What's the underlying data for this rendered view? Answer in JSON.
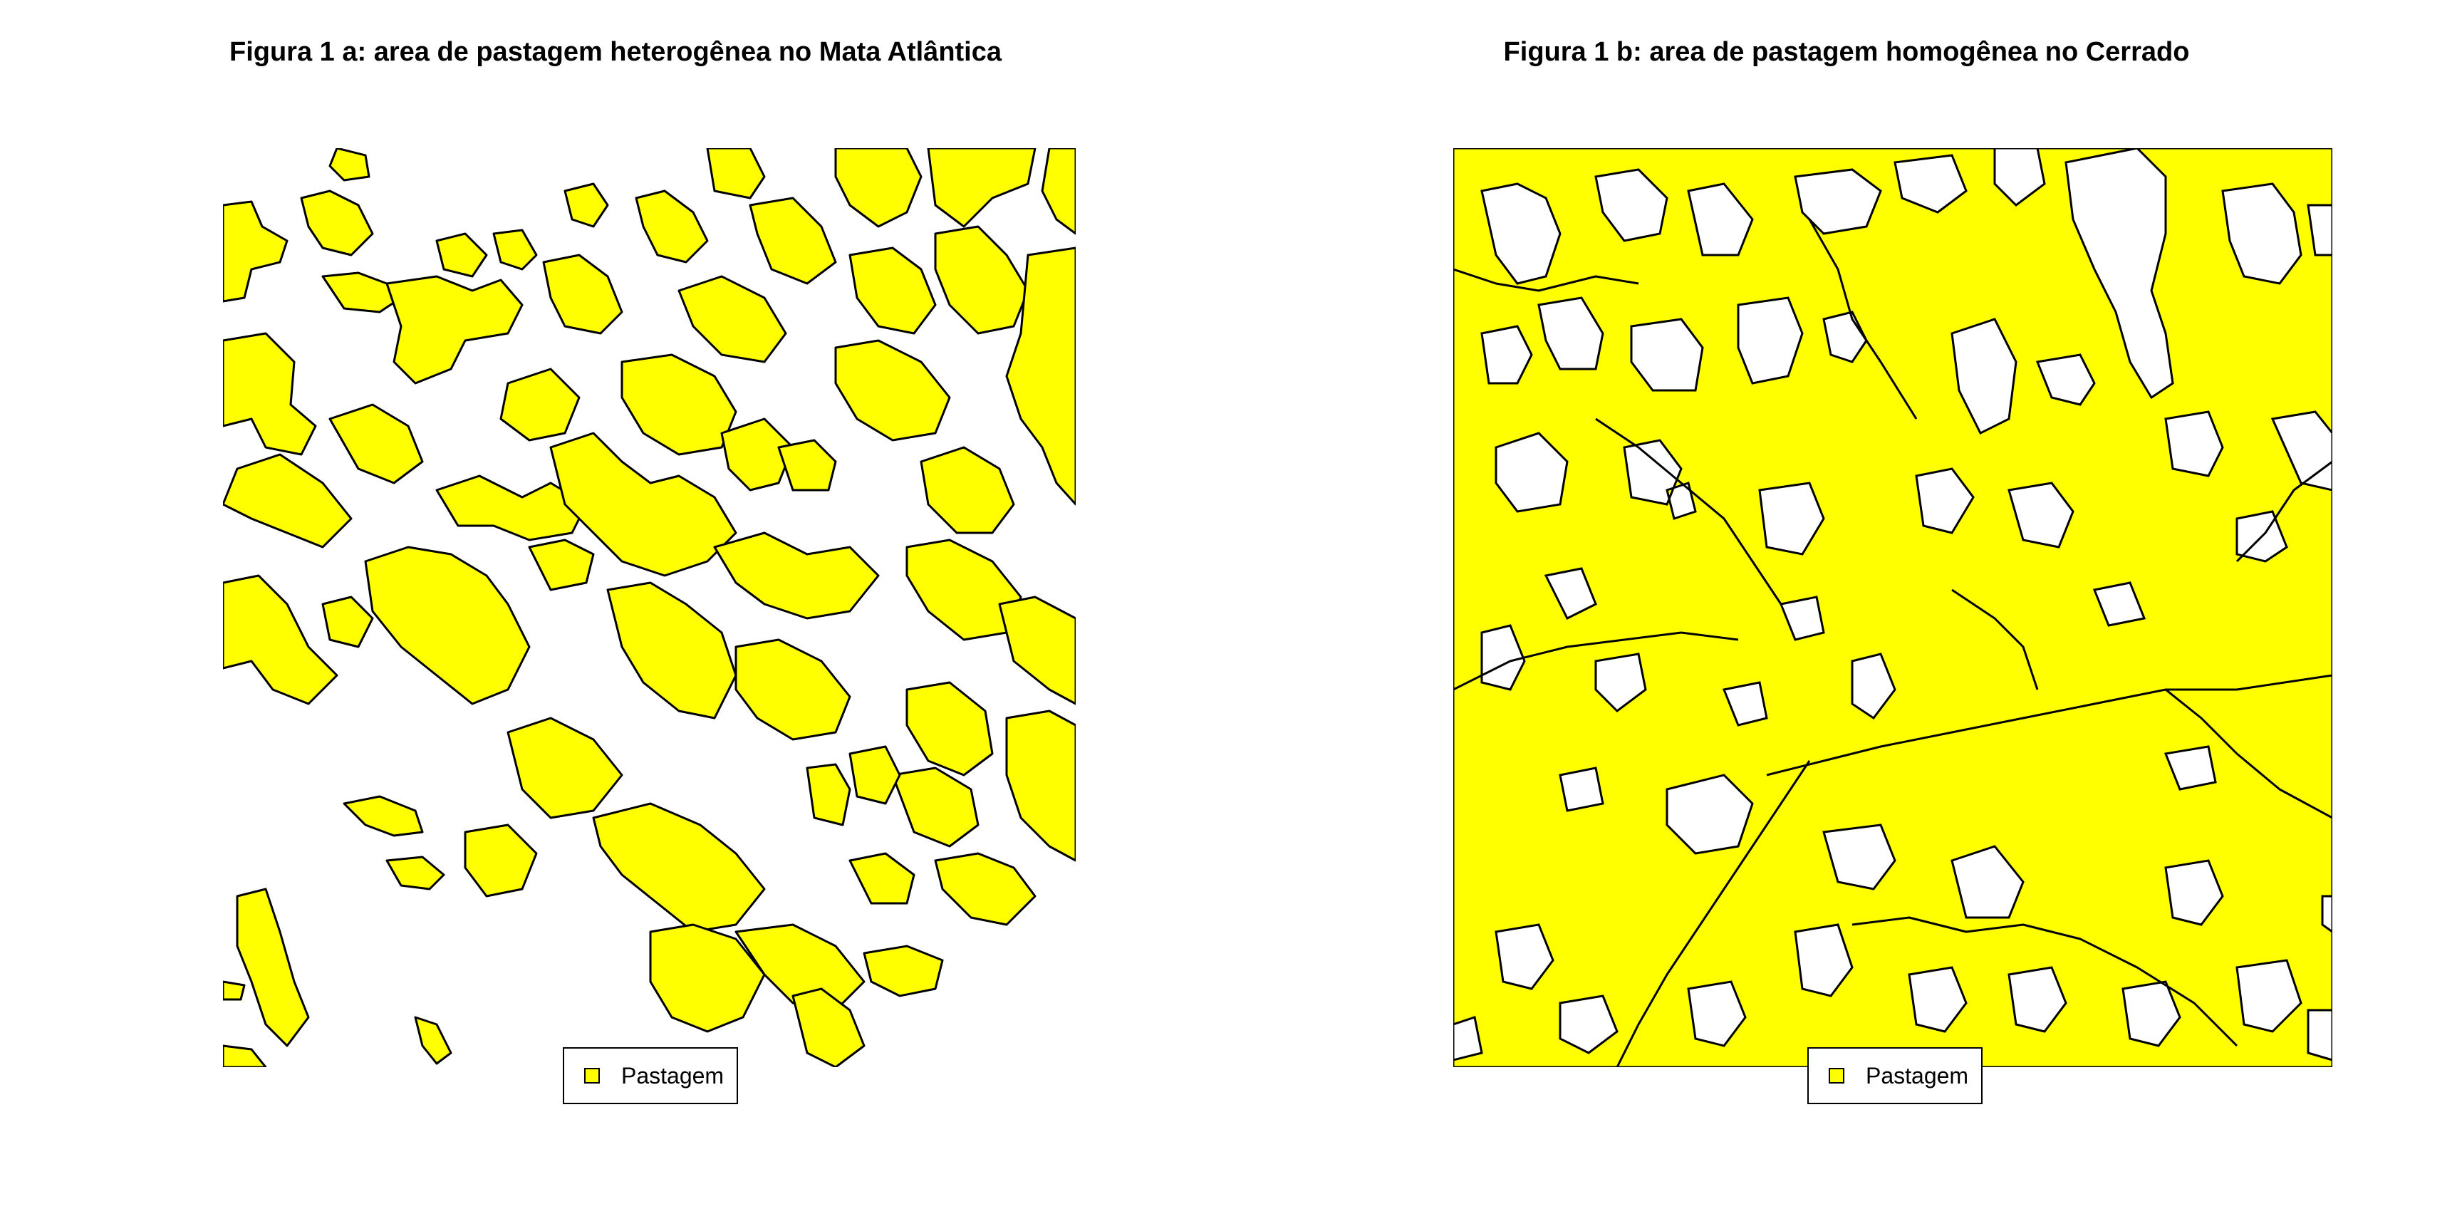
{
  "figures": [
    {
      "id": "a",
      "title": "Figura 1 a: area de pastagem heterogênea no Mata Atlântica",
      "legend_label": "Pastagem",
      "pattern": "heterogeneous"
    },
    {
      "id": "b",
      "title": "Figura 1 b: area de pastagem homogênea no Cerrado",
      "legend_label": "Pastagem",
      "pattern": "homogeneous"
    }
  ],
  "colors": {
    "pasture": "#ffff00",
    "outline": "#000000",
    "background": "#ffffff"
  }
}
